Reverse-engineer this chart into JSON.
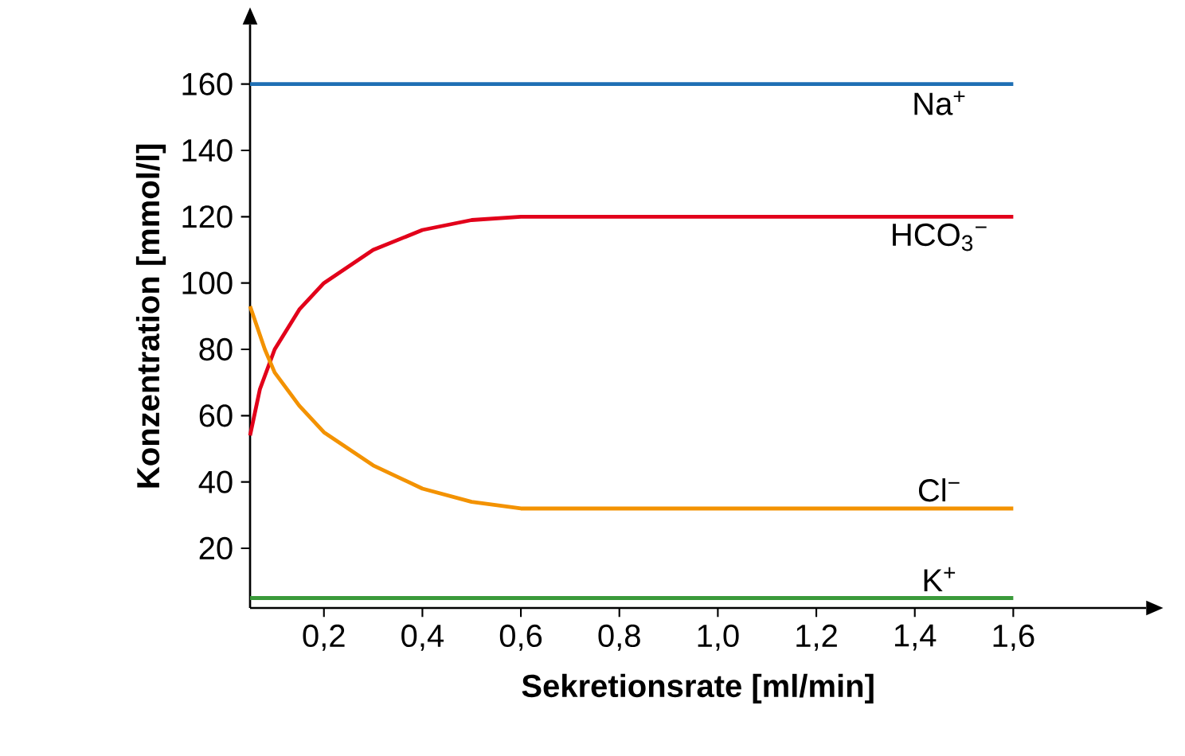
{
  "chart_data": {
    "type": "line",
    "xlabel": "Sekretionsrate [ml/min]",
    "ylabel": "Konzentration [mmol/l]",
    "xlim": [
      0.05,
      1.87
    ],
    "ylim": [
      2,
      178
    ],
    "xticks": [
      {
        "value": 0.2,
        "label": "0,2"
      },
      {
        "value": 0.4,
        "label": "0,4"
      },
      {
        "value": 0.6,
        "label": "0,6"
      },
      {
        "value": 0.8,
        "label": "0,8"
      },
      {
        "value": 1.0,
        "label": "1,0"
      },
      {
        "value": 1.2,
        "label": "1,2"
      },
      {
        "value": 1.4,
        "label": "1,4"
      },
      {
        "value": 1.6,
        "label": "1,6"
      }
    ],
    "yticks": [
      20,
      40,
      60,
      80,
      100,
      120,
      140,
      160
    ],
    "grid": false,
    "legend": false,
    "series": [
      {
        "name": "Na$^{+}$",
        "color": "#1f6fb4",
        "x": [
          0.05,
          1.6
        ],
        "values": [
          160,
          160
        ]
      },
      {
        "name": "HCO$_{3}$$^{−}$",
        "color": "#e2001a",
        "x": [
          0.05,
          0.07,
          0.1,
          0.15,
          0.2,
          0.3,
          0.4,
          0.5,
          0.6,
          1.6
        ],
        "values": [
          54,
          68,
          80,
          92,
          100,
          110,
          116,
          119,
          120,
          120
        ]
      },
      {
        "name": "Cl$^{−}$",
        "color": "#f39200",
        "x": [
          0.05,
          0.08,
          0.1,
          0.15,
          0.2,
          0.3,
          0.4,
          0.5,
          0.6,
          1.6
        ],
        "values": [
          93,
          80,
          73,
          63,
          55,
          45,
          38,
          34,
          32,
          32
        ]
      },
      {
        "name": "K$^{+}$",
        "color": "#3a9a3a",
        "x": [
          0.05,
          1.6
        ],
        "values": [
          5,
          5
        ]
      }
    ]
  }
}
